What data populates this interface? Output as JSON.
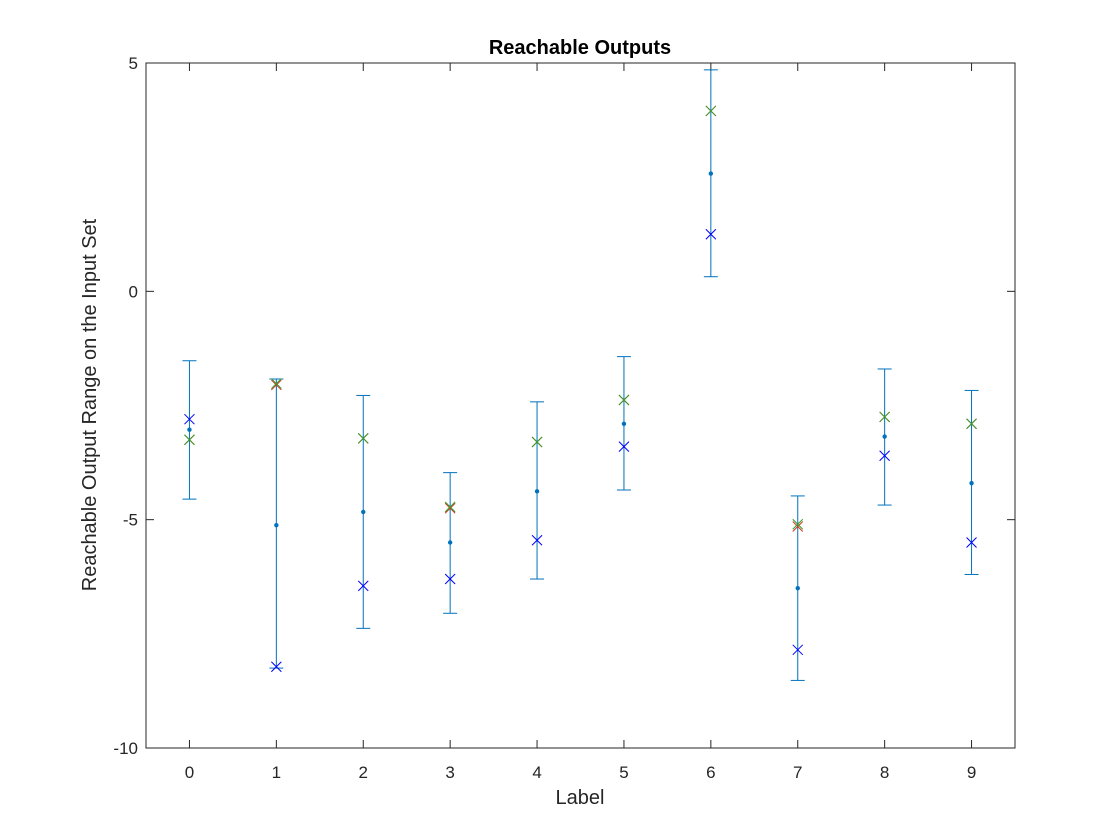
{
  "chart_data": {
    "type": "scatter",
    "title": "Reachable Outputs",
    "xlabel": "Label",
    "ylabel": "Reachable Output Range on the Input Set",
    "xlim": [
      -0.5,
      9.5
    ],
    "ylim": [
      -10,
      5
    ],
    "x_ticks": [
      "0",
      "1",
      "2",
      "3",
      "4",
      "5",
      "6",
      "7",
      "8",
      "9"
    ],
    "y_ticks": [
      "5",
      "0",
      "-5",
      "-10"
    ],
    "grid": false,
    "legend": "none",
    "colors": {
      "errorbar": "#0072BD",
      "blue_marker": "#0000FF",
      "red_marker": "#D4351C",
      "green_marker": "#33A02C",
      "axis": "#262626"
    },
    "error_bars": [
      {
        "x": 0,
        "center": -3.03,
        "lower": -4.55,
        "upper": -1.52
      },
      {
        "x": 1,
        "center": -5.12,
        "lower": -8.25,
        "upper": -1.92
      },
      {
        "x": 2,
        "center": -4.83,
        "lower": -7.38,
        "upper": -2.28
      },
      {
        "x": 3,
        "center": -5.5,
        "lower": -7.05,
        "upper": -3.97
      },
      {
        "x": 4,
        "center": -4.38,
        "lower": -6.3,
        "upper": -2.42
      },
      {
        "x": 5,
        "center": -2.9,
        "lower": -4.35,
        "upper": -1.43
      },
      {
        "x": 6,
        "center": 2.58,
        "lower": 0.32,
        "upper": 4.85
      },
      {
        "x": 7,
        "center": -6.5,
        "lower": -8.52,
        "upper": -4.48
      },
      {
        "x": 8,
        "center": -3.18,
        "lower": -4.68,
        "upper": -1.7
      },
      {
        "x": 9,
        "center": -4.2,
        "lower": -6.2,
        "upper": -2.17
      }
    ],
    "series": [
      {
        "marker": "x",
        "color": "#0000FF",
        "x": [
          0,
          1,
          2,
          3,
          4,
          5,
          6,
          7,
          8,
          9
        ],
        "values": [
          -2.8,
          -8.22,
          -6.45,
          -6.3,
          -5.45,
          -3.4,
          1.25,
          -7.85,
          -3.6,
          -5.5
        ]
      },
      {
        "marker": "x",
        "color": "#D4351C",
        "x": [
          0,
          1,
          2,
          3,
          4,
          5,
          6,
          7,
          8,
          9
        ],
        "values": [
          -3.25,
          -2.05,
          -3.22,
          -4.75,
          -3.3,
          -2.38,
          3.95,
          -5.15,
          -2.75,
          -2.9
        ]
      },
      {
        "marker": "x",
        "color": "#33A02C",
        "x": [
          0,
          1,
          2,
          3,
          4,
          5,
          6,
          7,
          8,
          9
        ],
        "values": [
          -3.25,
          -2.02,
          -3.22,
          -4.72,
          -3.3,
          -2.38,
          3.95,
          -5.1,
          -2.75,
          -2.9
        ]
      }
    ]
  }
}
